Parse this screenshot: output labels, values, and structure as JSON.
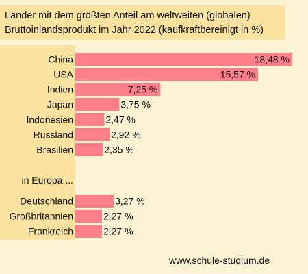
{
  "chart_data": {
    "type": "bar",
    "orientation": "horizontal",
    "title_lines": [
      "Länder mit dem größten Anteil am weltweiten (globalen)",
      "Bruttoinlandsprodukt im Jahr 2022 (kaufkraftbereinigt in %)"
    ],
    "section_label": "in Europa ...",
    "groups": [
      {
        "categories": [
          "China",
          "USA",
          "Indien",
          "Japan",
          "Indonesien",
          "Russland",
          "Brasilien"
        ],
        "values": [
          18.48,
          15.57,
          7.25,
          3.75,
          2.47,
          2.92,
          2.35
        ],
        "value_labels": [
          "18,48 %",
          "15,57 %",
          "7,25 %",
          "3,75 %",
          "2,47 %",
          "2,92 %",
          "2,35 %"
        ]
      },
      {
        "categories": [
          "Deutschland",
          "Großbritannien",
          "Frankreich"
        ],
        "values": [
          3.27,
          2.27,
          2.27
        ],
        "value_labels": [
          "3,27 %",
          "2,27 %",
          "2,27 %"
        ]
      }
    ],
    "bar_color": "#ff7f8a",
    "panel_color": "#fbe29f",
    "background_color": "#fcf3d5"
  },
  "footer": "www.schule-studium.de"
}
